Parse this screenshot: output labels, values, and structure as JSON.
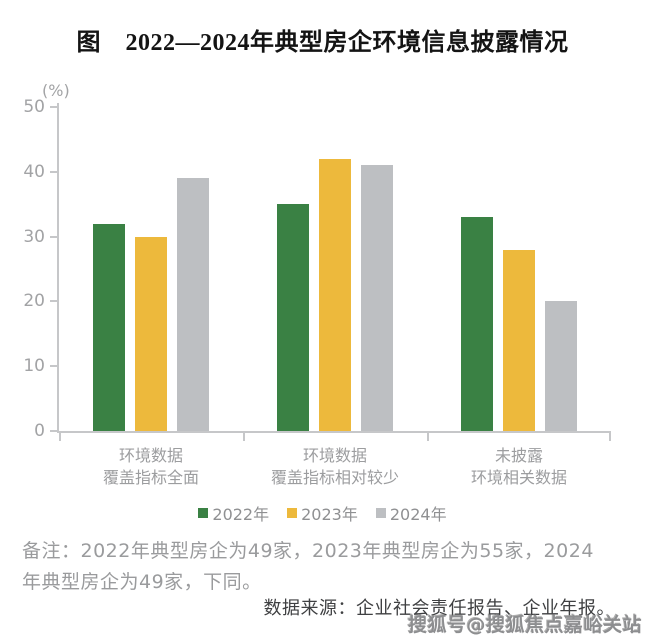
{
  "title": "图　2022—2024年典型房企环境信息披露情况",
  "chart_data": {
    "type": "bar",
    "unit_label": "(%)",
    "categories": [
      [
        "环境数据",
        "覆盖指标全面"
      ],
      [
        "环境数据",
        "覆盖指标相对较少"
      ],
      [
        "未披露",
        "环境相关数据"
      ]
    ],
    "series": [
      {
        "name": "2022年",
        "color": "#3a8144",
        "values": [
          32,
          35,
          33
        ]
      },
      {
        "name": "2023年",
        "color": "#edb93c",
        "values": [
          30,
          42,
          28
        ]
      },
      {
        "name": "2024年",
        "color": "#bdbfc2",
        "values": [
          39,
          41,
          20
        ]
      }
    ],
    "ylim": [
      0,
      50
    ],
    "ytick_step": 10,
    "grid": false,
    "legend_position": "bottom",
    "axis_color": "#c6c7c9"
  },
  "notes": {
    "lines": [
      "备注：2022年典型房企为49家，2023年典型房企为55家，2024",
      "年典型房企为49家，下同。"
    ]
  },
  "source": "数据来源：企业社会责任报告、企业年报。",
  "watermark": "搜狐号@搜狐焦点嘉峪关站"
}
